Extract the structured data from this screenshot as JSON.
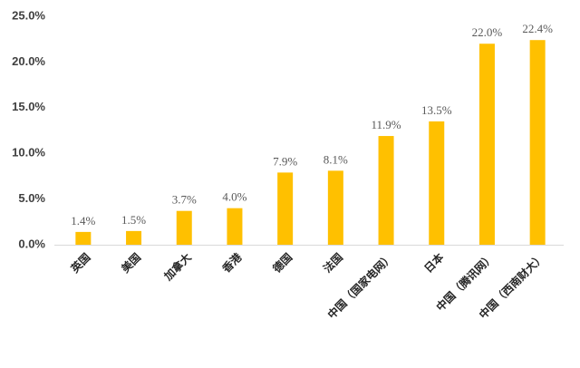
{
  "chart_data": {
    "type": "bar",
    "categories": [
      "英国",
      "美国",
      "加拿大",
      "香港",
      "德国",
      "法国",
      "中国（国家电网）",
      "日本",
      "中国（腾讯网）",
      "中国（西南财大）"
    ],
    "values": [
      1.4,
      1.5,
      3.7,
      4.0,
      7.9,
      8.1,
      11.9,
      13.5,
      22.0,
      22.4
    ],
    "value_labels": [
      "1.4%",
      "1.5%",
      "3.7%",
      "4.0%",
      "7.9%",
      "8.1%",
      "11.9%",
      "13.5%",
      "22.0%",
      "22.4%"
    ],
    "color": "#FFC000",
    "ylim": [
      0,
      25
    ],
    "yticks": [
      {
        "value": 0,
        "label": "0.0%"
      },
      {
        "value": 5,
        "label": "5.0%"
      },
      {
        "value": 10,
        "label": "10.0%"
      },
      {
        "value": 15,
        "label": "15.0%"
      },
      {
        "value": 20,
        "label": "20.0%"
      },
      {
        "value": 25,
        "label": "25.0%"
      }
    ],
    "grid": false
  }
}
